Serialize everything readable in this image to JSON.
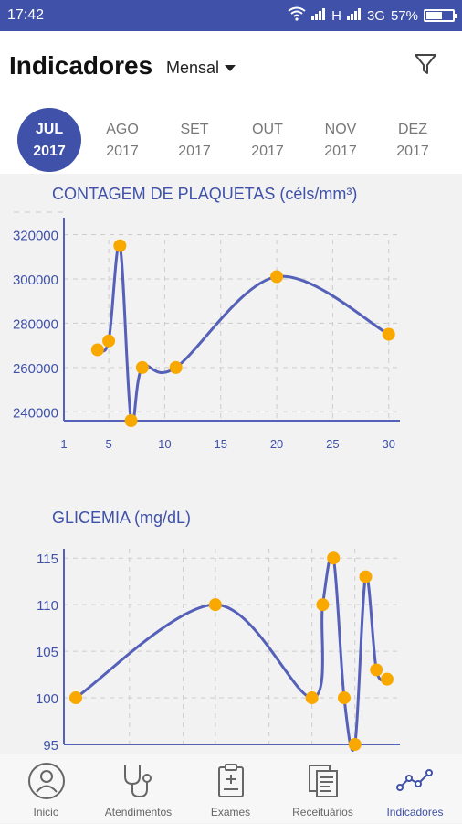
{
  "status": {
    "time": "17:42",
    "network": "H",
    "network2": "3G",
    "battery": "57%"
  },
  "header": {
    "title": "Indicadores",
    "period": "Mensal"
  },
  "months": [
    {
      "m": "JUL",
      "y": "2017",
      "active": true
    },
    {
      "m": "AGO",
      "y": "2017"
    },
    {
      "m": "SET",
      "y": "2017"
    },
    {
      "m": "OUT",
      "y": "2017"
    },
    {
      "m": "NOV",
      "y": "2017"
    },
    {
      "m": "DEZ",
      "y": "2017"
    }
  ],
  "nav": [
    {
      "label": "Inicio"
    },
    {
      "label": "Atendimentos"
    },
    {
      "label": "Exames"
    },
    {
      "label": "Receituários"
    },
    {
      "label": "Indicadores",
      "active": true
    }
  ],
  "colors": {
    "accent": "#3f51a8",
    "point": "#f9a800",
    "line": "#5560b8"
  },
  "chart_data": [
    {
      "type": "line",
      "title": "CONTAGEM DE PLAQUETAS (céls/mm³)",
      "x": [
        4,
        5,
        6,
        7,
        8,
        11,
        20,
        30
      ],
      "values": [
        268000,
        272000,
        315000,
        236000,
        260000,
        260000,
        301000,
        275000
      ],
      "xticks": [
        1,
        5,
        10,
        15,
        20,
        25,
        30
      ],
      "yticks": [
        240000,
        260000,
        280000,
        300000,
        320000
      ],
      "xlim": [
        1,
        31
      ],
      "ylim": [
        236000,
        326000
      ]
    },
    {
      "type": "line",
      "title": "GLICEMIA (mg/dL)",
      "x": [
        1,
        14,
        23,
        24,
        25,
        26,
        27,
        28,
        29,
        30
      ],
      "values": [
        100,
        110,
        100,
        110,
        115,
        100,
        95,
        113,
        103,
        102
      ],
      "yticks": [
        95,
        100,
        105,
        110,
        115
      ],
      "ylim": [
        95,
        116
      ]
    }
  ]
}
